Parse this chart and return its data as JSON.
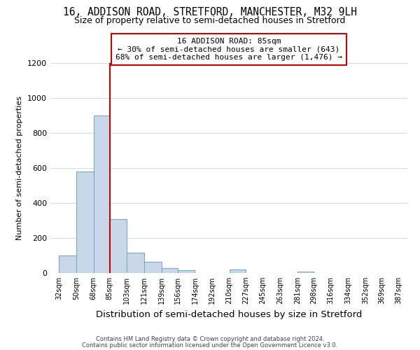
{
  "title": "16, ADDISON ROAD, STRETFORD, MANCHESTER, M32 9LH",
  "subtitle": "Size of property relative to semi-detached houses in Stretford",
  "xlabel": "Distribution of semi-detached houses by size in Stretford",
  "ylabel": "Number of semi-detached properties",
  "bar_left_edges": [
    32,
    50,
    68,
    85,
    103,
    121,
    139,
    156,
    174,
    192,
    210,
    227,
    245,
    263,
    281,
    298,
    316,
    334,
    352,
    369
  ],
  "bar_heights": [
    100,
    580,
    900,
    310,
    115,
    65,
    30,
    15,
    0,
    0,
    20,
    0,
    0,
    0,
    10,
    0,
    0,
    0,
    0,
    0
  ],
  "bar_widths": [
    18,
    18,
    17,
    18,
    18,
    18,
    17,
    18,
    18,
    18,
    17,
    18,
    18,
    18,
    17,
    18,
    18,
    18,
    17,
    18
  ],
  "bar_color": "#c8d8e8",
  "bar_edge_color": "#7aaac8",
  "property_line_x": 85,
  "property_line_color": "#cc0000",
  "annotation_text_line1": "16 ADDISON ROAD: 85sqm",
  "annotation_text_line2": "← 30% of semi-detached houses are smaller (643)",
  "annotation_text_line3": "68% of semi-detached houses are larger (1,476) →",
  "annotation_box_color": "#ffffff",
  "annotation_box_edge_color": "#cc0000",
  "tick_labels": [
    "32sqm",
    "50sqm",
    "68sqm",
    "85sqm",
    "103sqm",
    "121sqm",
    "139sqm",
    "156sqm",
    "174sqm",
    "192sqm",
    "210sqm",
    "227sqm",
    "245sqm",
    "263sqm",
    "281sqm",
    "298sqm",
    "316sqm",
    "334sqm",
    "352sqm",
    "369sqm",
    "387sqm"
  ],
  "tick_positions": [
    32,
    50,
    68,
    85,
    103,
    121,
    139,
    156,
    174,
    192,
    210,
    227,
    245,
    263,
    281,
    298,
    316,
    334,
    352,
    369,
    387
  ],
  "ylim": [
    0,
    1200
  ],
  "xlim": [
    23,
    396
  ],
  "yticks": [
    0,
    200,
    400,
    600,
    800,
    1000,
    1200
  ],
  "footer_line1": "Contains HM Land Registry data © Crown copyright and database right 2024.",
  "footer_line2": "Contains public sector information licensed under the Open Government Licence v3.0.",
  "background_color": "#ffffff",
  "grid_color": "#d0dce8",
  "title_fontsize": 10.5,
  "subtitle_fontsize": 9,
  "xlabel_fontsize": 9.5,
  "ylabel_fontsize": 8,
  "annotation_fontsize": 8,
  "tick_fontsize": 7,
  "ytick_fontsize": 8
}
